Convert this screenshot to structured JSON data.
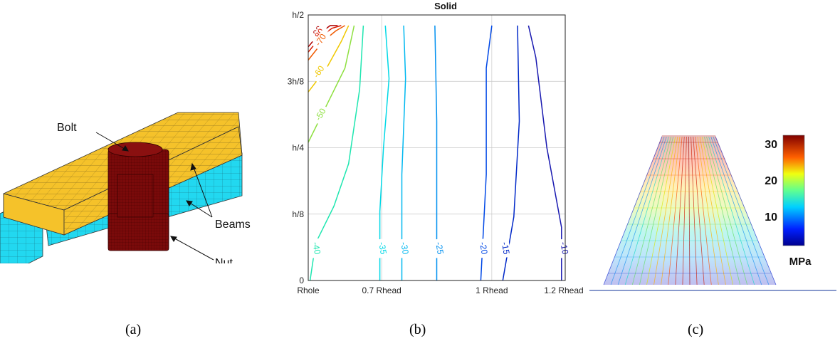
{
  "panel_a": {
    "labels": {
      "bolt": "Bolt",
      "beams": "Beams",
      "nut": "Nut"
    },
    "caption": "(a)"
  },
  "panel_b": {
    "caption": "(b)"
  },
  "panel_c": {
    "colorbar_ticks": [
      "30",
      "20",
      "10"
    ],
    "colorbar_unit": "MPa",
    "caption": "(c)"
  },
  "colors": {
    "beam_yellow": "#f5c22a",
    "beam_cyan": "#22d8f0",
    "bolt_red": "#7a0a0a"
  },
  "chart_data": {
    "type": "contour",
    "title": "Solid",
    "x_ticks": [
      "Rhole",
      "0.7 Rhead",
      "1 Rhead",
      "1.2 Rhead"
    ],
    "x_values": [
      0.5,
      0.7,
      1.0,
      1.2
    ],
    "y_ticks": [
      "0",
      "h/8",
      "h/4",
      "3h/8",
      "h/2"
    ],
    "y_values": [
      0,
      0.125,
      0.25,
      0.375,
      0.5
    ],
    "xlim": [
      0.5,
      1.2
    ],
    "ylim": [
      0,
      0.5
    ],
    "grid": true,
    "contour_levels": [
      {
        "label": "-90",
        "color": "#b00000",
        "points": [
          [
            0.5,
            0.44
          ],
          [
            0.53,
            0.465
          ],
          [
            0.56,
            0.48
          ],
          [
            0.58,
            0.48
          ]
        ]
      },
      {
        "label": "-80",
        "color": "#d81800",
        "points": [
          [
            0.5,
            0.43
          ],
          [
            0.535,
            0.46
          ],
          [
            0.565,
            0.475
          ],
          [
            0.59,
            0.48
          ]
        ]
      },
      {
        "label": "-70",
        "color": "#f05a00",
        "points": [
          [
            0.5,
            0.415
          ],
          [
            0.54,
            0.45
          ],
          [
            0.575,
            0.47
          ],
          [
            0.6,
            0.48
          ]
        ]
      },
      {
        "label": "-60",
        "color": "#f0c800",
        "points": [
          [
            0.5,
            0.355
          ],
          [
            0.55,
            0.4
          ],
          [
            0.59,
            0.45
          ],
          [
            0.61,
            0.48
          ]
        ]
      },
      {
        "label": "-50",
        "color": "#8ee040",
        "points": [
          [
            0.5,
            0.26
          ],
          [
            0.55,
            0.33
          ],
          [
            0.6,
            0.4
          ],
          [
            0.625,
            0.48
          ]
        ]
      },
      {
        "label": "-40",
        "color": "#1ee6b0",
        "points": [
          [
            0.505,
            0
          ],
          [
            0.52,
            0.07
          ],
          [
            0.57,
            0.14
          ],
          [
            0.61,
            0.22
          ],
          [
            0.64,
            0.36
          ],
          [
            0.65,
            0.48
          ]
        ]
      },
      {
        "label": "-35",
        "color": "#00d8e6",
        "points": [
          [
            0.695,
            0
          ],
          [
            0.695,
            0.13
          ],
          [
            0.705,
            0.25
          ],
          [
            0.72,
            0.38
          ],
          [
            0.71,
            0.48
          ]
        ]
      },
      {
        "label": "-30",
        "color": "#00b8f0",
        "points": [
          [
            0.755,
            0
          ],
          [
            0.755,
            0.2
          ],
          [
            0.765,
            0.38
          ],
          [
            0.76,
            0.48
          ]
        ]
      },
      {
        "label": "-25",
        "color": "#0090f0",
        "points": [
          [
            0.85,
            0
          ],
          [
            0.85,
            0.3
          ],
          [
            0.845,
            0.48
          ]
        ]
      },
      {
        "label": "-20",
        "color": "#0048e6",
        "points": [
          [
            0.97,
            0
          ],
          [
            0.985,
            0.2
          ],
          [
            0.985,
            0.4
          ],
          [
            1.0,
            0.48
          ]
        ]
      },
      {
        "label": "-15",
        "color": "#0028c8",
        "points": [
          [
            1.03,
            0
          ],
          [
            1.06,
            0.12
          ],
          [
            1.075,
            0.3
          ],
          [
            1.07,
            0.48
          ]
        ]
      },
      {
        "label": "-10",
        "color": "#1818b0",
        "points": [
          [
            1.19,
            0
          ],
          [
            1.19,
            0.1
          ],
          [
            1.15,
            0.25
          ],
          [
            1.12,
            0.42
          ],
          [
            1.1,
            0.48
          ]
        ]
      }
    ]
  }
}
